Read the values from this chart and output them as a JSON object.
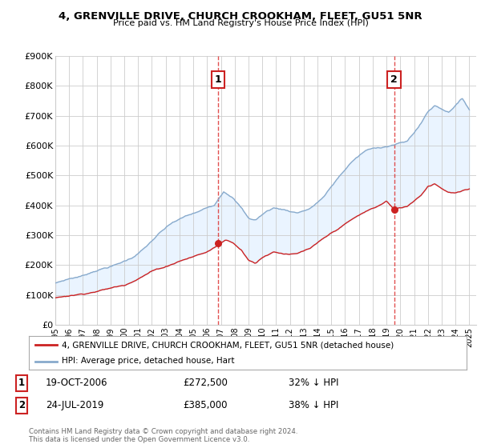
{
  "title": "4, GRENVILLE DRIVE, CHURCH CROOKHAM, FLEET, GU51 5NR",
  "subtitle": "Price paid vs. HM Land Registry's House Price Index (HPI)",
  "ylabel_ticks": [
    "£0",
    "£100K",
    "£200K",
    "£300K",
    "£400K",
    "£500K",
    "£600K",
    "£700K",
    "£800K",
    "£900K"
  ],
  "ylim": [
    0,
    900000
  ],
  "xlim_start": 1995.0,
  "xlim_end": 2025.5,
  "sale1_x": 2006.8,
  "sale1_y": 272500,
  "sale2_x": 2019.55,
  "sale2_y": 385000,
  "sale1_date": "19-OCT-2006",
  "sale1_price": "£272,500",
  "sale1_hpi": "32% ↓ HPI",
  "sale2_date": "24-JUL-2019",
  "sale2_price": "£385,000",
  "sale2_hpi": "38% ↓ HPI",
  "red_line_color": "#cc2222",
  "blue_line_color": "#88aacc",
  "legend_label_red": "4, GRENVILLE DRIVE, CHURCH CROOKHAM, FLEET, GU51 5NR (detached house)",
  "legend_label_blue": "HPI: Average price, detached house, Hart",
  "footer": "Contains HM Land Registry data © Crown copyright and database right 2024.\nThis data is licensed under the Open Government Licence v3.0.",
  "bg_color": "#ffffff",
  "grid_color": "#cccccc",
  "fill_color": "#ddeeff"
}
